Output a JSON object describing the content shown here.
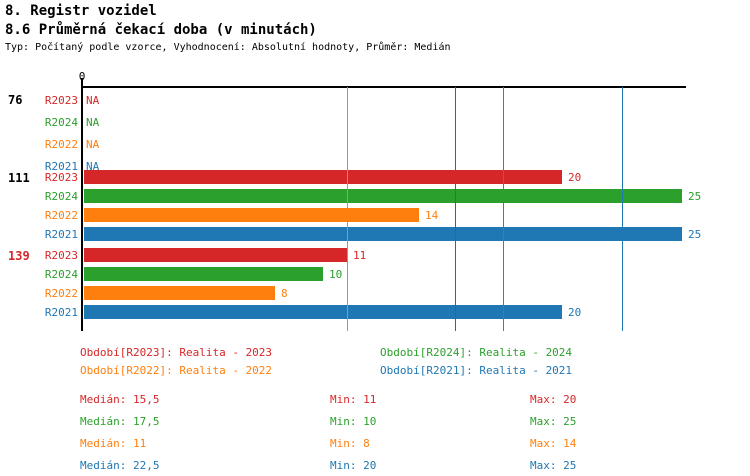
{
  "header": {
    "title": "8. Registr vozidel",
    "subtitle": "8.6 Průměrná čekací doba (v minutách)",
    "meta": "Typ: Počítaný podle vzorce, Vyhodnocení: Absolutní hodnoty, Průměr: Medián"
  },
  "series_colors": {
    "R2023": "#d62728",
    "R2024": "#2ca02c",
    "R2022": "#ff7f0e",
    "R2021": "#1f77b4"
  },
  "chart_data": {
    "type": "bar",
    "orientation": "horizontal",
    "title": "8.6 Průměrná čekací doba (v minutách)",
    "x_axis": {
      "zero_label": "0",
      "min": 0,
      "max_visible": 25,
      "grid": false
    },
    "series_order": [
      "R2023",
      "R2024",
      "R2022",
      "R2021"
    ],
    "groups": [
      {
        "label": "76",
        "label_color": "#000000",
        "bars": [
          {
            "series": "R2023",
            "value": null,
            "display": "NA"
          },
          {
            "series": "R2024",
            "value": null,
            "display": "NA"
          },
          {
            "series": "R2022",
            "value": null,
            "display": "NA"
          },
          {
            "series": "R2021",
            "value": null,
            "display": "NA"
          }
        ]
      },
      {
        "label": "111",
        "label_color": "#000000",
        "bars": [
          {
            "series": "R2023",
            "value": 20,
            "display": "20"
          },
          {
            "series": "R2024",
            "value": 25,
            "display": "25"
          },
          {
            "series": "R2022",
            "value": 14,
            "display": "14"
          },
          {
            "series": "R2021",
            "value": 25,
            "display": "25"
          }
        ]
      },
      {
        "label": "139",
        "label_color": "#d62728",
        "bars": [
          {
            "series": "R2023",
            "value": 11,
            "display": "11"
          },
          {
            "series": "R2024",
            "value": 10,
            "display": "10"
          },
          {
            "series": "R2022",
            "value": 8,
            "display": "8"
          },
          {
            "series": "R2021",
            "value": 20,
            "display": "20"
          }
        ]
      }
    ],
    "median_lines": [
      {
        "series": "R2023",
        "value": 15.5
      },
      {
        "series": "R2024",
        "value": 17.5
      },
      {
        "series": "R2022",
        "value": 11
      },
      {
        "series": "R2021",
        "value": 22.5
      }
    ]
  },
  "legend": {
    "items": [
      {
        "series": "R2023",
        "text": "Období[R2023]: Realita - 2023"
      },
      {
        "series": "R2024",
        "text": "Období[R2024]: Realita - 2024"
      },
      {
        "series": "R2022",
        "text": "Období[R2022]: Realita - 2022"
      },
      {
        "series": "R2021",
        "text": "Období[R2021]: Realita - 2021"
      }
    ]
  },
  "stats": {
    "rows": [
      {
        "series": "R2023",
        "median": "Medián: 15,5",
        "min": "Min: 11",
        "max": "Max: 20"
      },
      {
        "series": "R2024",
        "median": "Medián: 17,5",
        "min": "Min: 10",
        "max": "Max: 25"
      },
      {
        "series": "R2022",
        "median": "Medián: 11",
        "min": "Min: 8",
        "max": "Max: 14"
      },
      {
        "series": "R2021",
        "median": "Medián: 22,5",
        "min": "Min: 20",
        "max": "Max: 25"
      }
    ]
  }
}
